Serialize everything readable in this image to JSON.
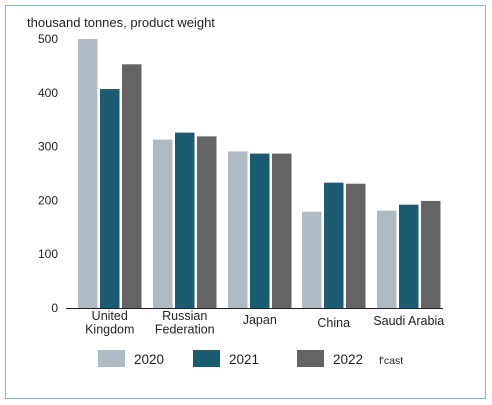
{
  "chart_data": {
    "type": "bar",
    "ylabel": "thousand tonnes, product weight",
    "ylim": [
      0,
      500
    ],
    "yticks": [
      "0",
      "100",
      "200",
      "300",
      "400",
      "500"
    ],
    "grid": false,
    "legend_position": "bottom",
    "categories": [
      [
        "United",
        "Kingdom"
      ],
      [
        "Russian",
        "Federation"
      ],
      [
        "Japan"
      ],
      [
        "China"
      ],
      [
        "Saudi Arabia"
      ]
    ],
    "series": [
      {
        "name": "2020",
        "color": "#aebac4",
        "values": [
          500,
          313,
          291,
          179,
          181
        ]
      },
      {
        "name": "2021",
        "color": "#1a5d73",
        "values": [
          407,
          326,
          287,
          233,
          192
        ]
      },
      {
        "name": "2022",
        "suffix": "f'cast",
        "color": "#646466",
        "values": [
          453,
          319,
          287,
          231,
          199
        ]
      }
    ]
  }
}
